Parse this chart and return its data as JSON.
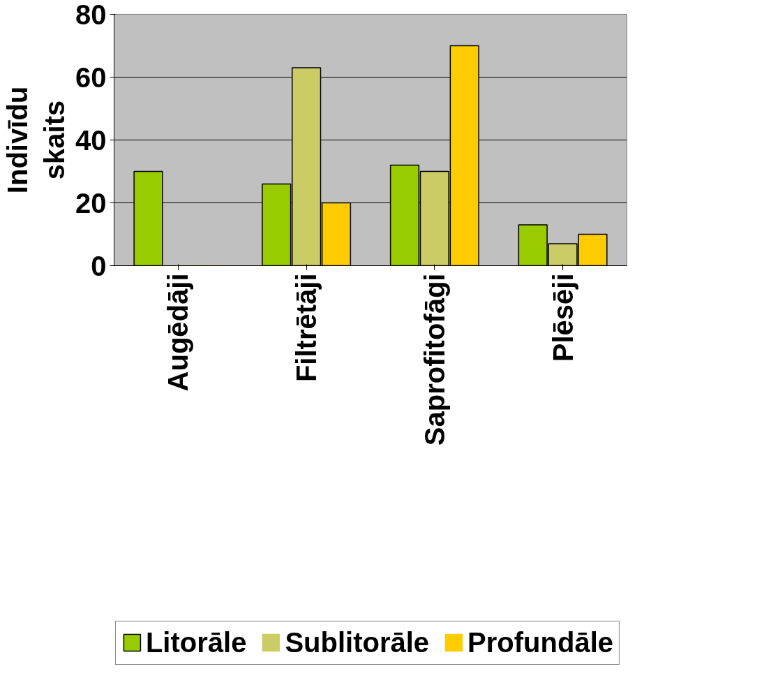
{
  "chart_data": {
    "type": "bar",
    "ylabel": "Indivīdu skaits",
    "categories": [
      "Augēdāji",
      "Filtrētāji",
      "Saprofitofāgi",
      "Plēsēji"
    ],
    "series": [
      {
        "name": "Litorāle",
        "color": "#99cc00",
        "values": [
          30,
          26,
          32,
          13
        ]
      },
      {
        "name": "Sublitorāle",
        "color": "#cccc66",
        "values": [
          0,
          63,
          30,
          7
        ]
      },
      {
        "name": "Profundāle",
        "color": "#ffcc00",
        "values": [
          0,
          20,
          70,
          10
        ]
      }
    ],
    "ylim": [
      0,
      80
    ],
    "yticks": [
      0,
      20,
      40,
      60,
      80
    ],
    "grid": "y",
    "legend": "bottom"
  }
}
